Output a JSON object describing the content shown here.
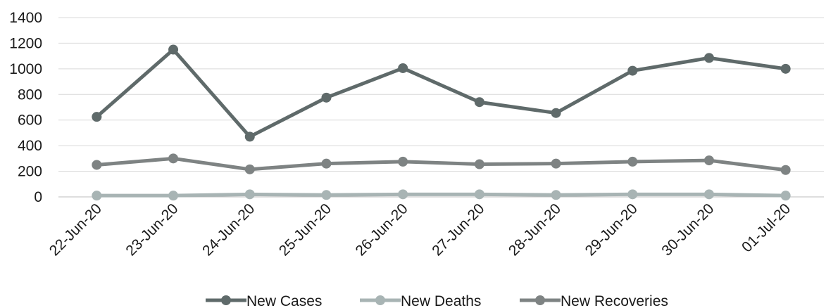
{
  "chart_data": {
    "type": "line",
    "categories": [
      "22-Jun-20",
      "23-Jun-20",
      "24-Jun-20",
      "25-Jun-20",
      "26-Jun-20",
      "27-Jun-20",
      "28-Jun-20",
      "29-Jun-20",
      "30-Jun-20",
      "01-Jul-20"
    ],
    "series": [
      {
        "name": "New Cases",
        "color": "#5f6a6a",
        "values": [
          625,
          1150,
          470,
          775,
          1005,
          740,
          655,
          985,
          1085,
          1000
        ]
      },
      {
        "name": "New Deaths",
        "color": "#a8b4b4",
        "values": [
          10,
          10,
          20,
          15,
          20,
          20,
          15,
          20,
          20,
          10
        ]
      },
      {
        "name": "New Recoveries",
        "color": "#7e8383",
        "values": [
          250,
          300,
          215,
          260,
          275,
          255,
          260,
          275,
          285,
          210
        ]
      }
    ],
    "yticks": [
      0,
      200,
      400,
      600,
      800,
      1000,
      1200,
      1400
    ],
    "ylim": [
      0,
      1400
    ],
    "grid": true,
    "legend": "bottom"
  }
}
